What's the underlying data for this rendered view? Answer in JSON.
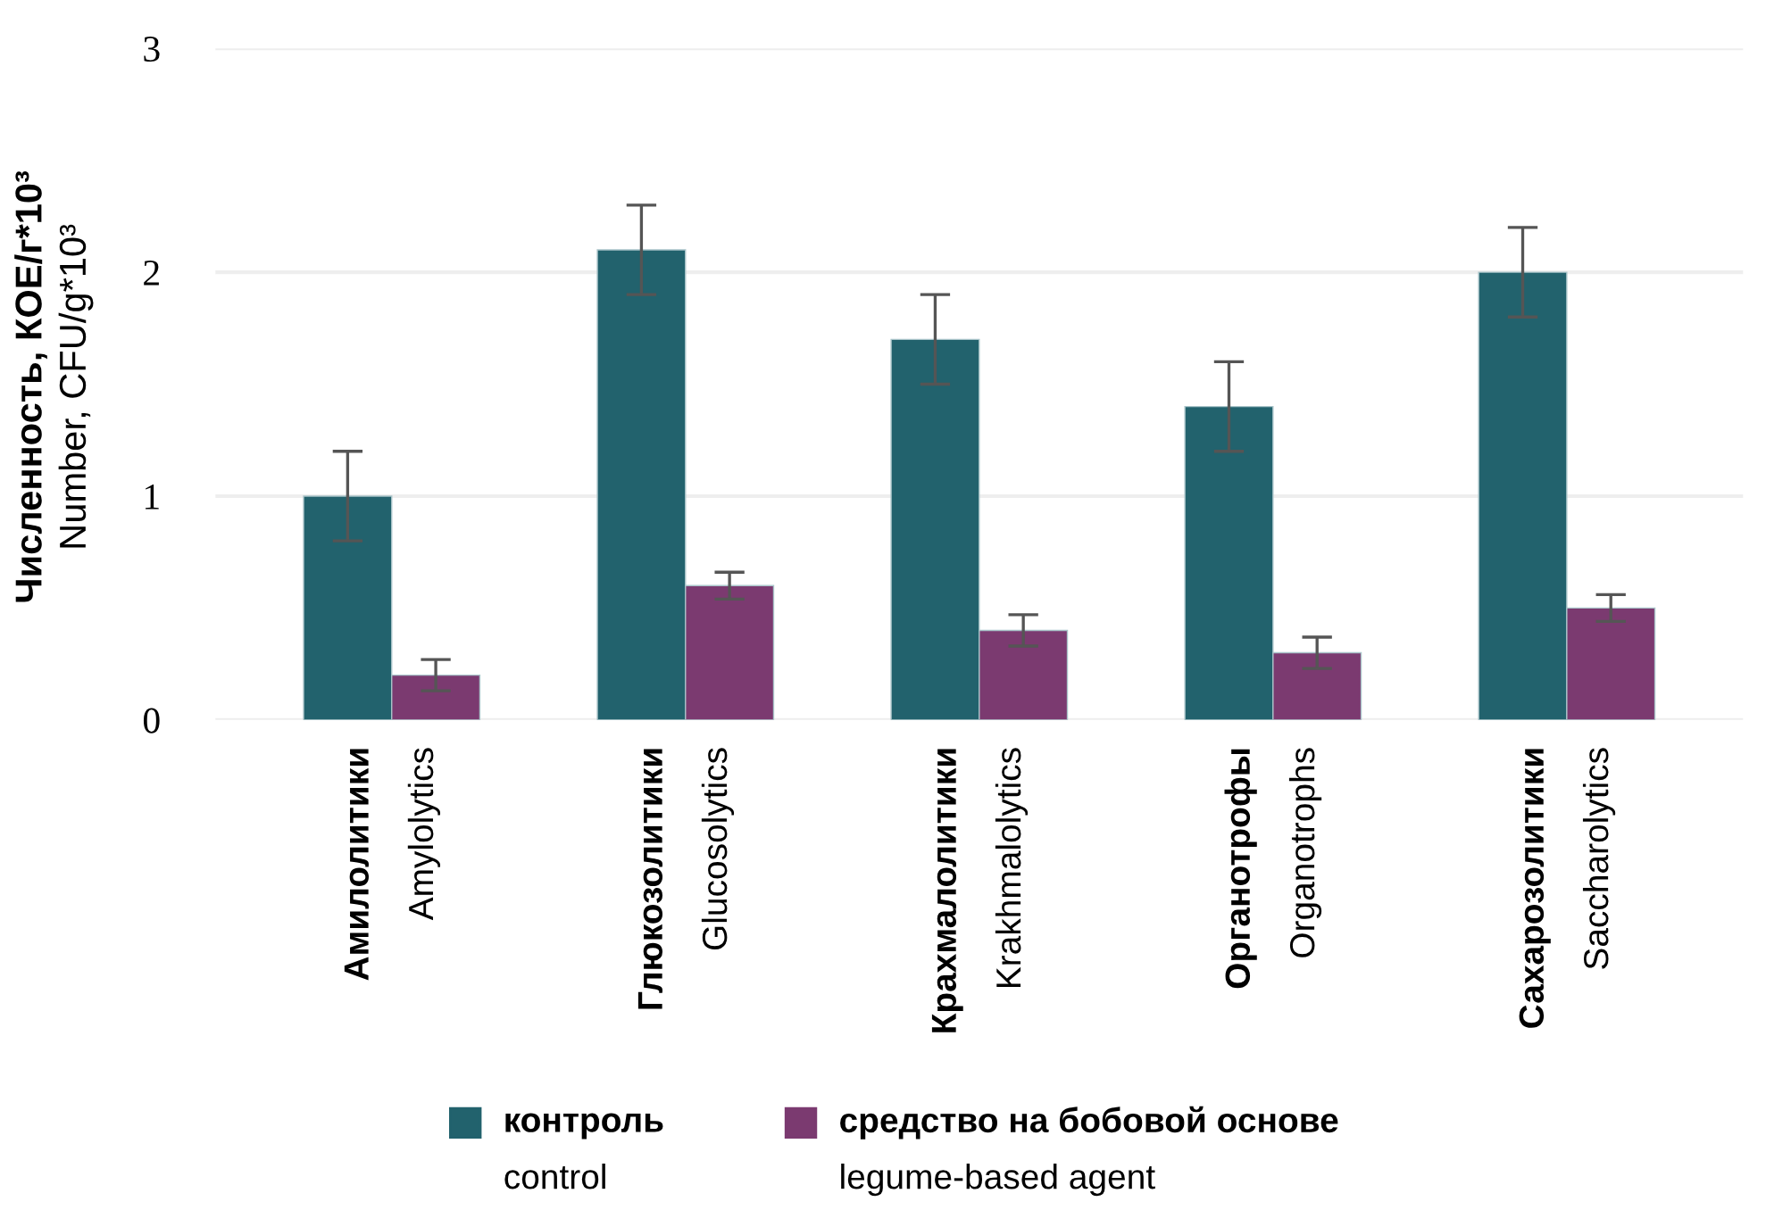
{
  "chart_data": {
    "type": "bar",
    "ylabel": "Численность, КОЕ/г*10³\nNumber, CFU/g*10³",
    "categories": [
      "Амилолитики\nAmylolytics",
      "Глюкозолитики\nGlucosolytics",
      "Крахмалолитики\nKrakhmalolytics",
      "Органотрофы\nOrganotrophs",
      "Сахарозолитики\nSaccharolytics"
    ],
    "series": [
      {
        "name": "контроль\ncontrol",
        "color": "#22626d",
        "values": [
          1.0,
          2.1,
          1.7,
          1.4,
          2.0
        ],
        "errors": [
          0.2,
          0.2,
          0.2,
          0.2,
          0.2
        ]
      },
      {
        "name": "средство на бобовой основе\nlegume-based agent",
        "color": "#7b3a70",
        "values": [
          0.2,
          0.6,
          0.4,
          0.3,
          0.5
        ],
        "errors": [
          0.07,
          0.06,
          0.07,
          0.07,
          0.06
        ]
      }
    ],
    "ylim": [
      0,
      3
    ],
    "yticks": [
      0,
      1,
      2,
      3
    ],
    "grid": "y",
    "legend": "bottom"
  }
}
